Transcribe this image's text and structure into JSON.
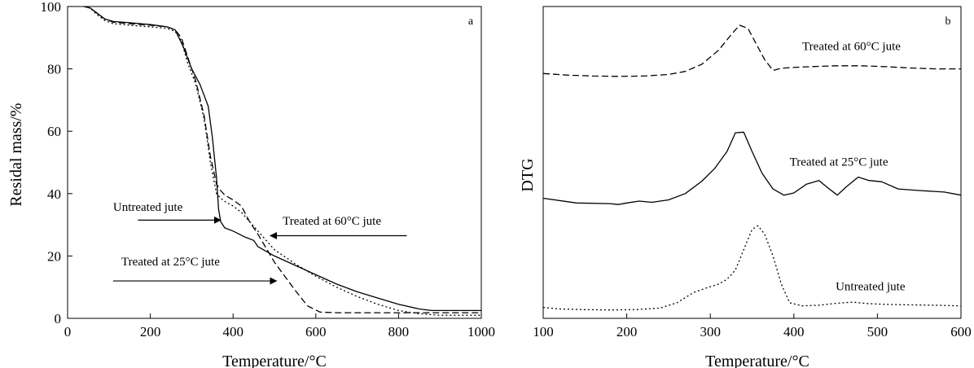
{
  "chart_data": [
    {
      "type": "line",
      "panel_label": "a",
      "xlabel": "Temperature/°C",
      "ylabel": "Residal mass/%",
      "xlim": [
        0,
        1000
      ],
      "ylim": [
        0,
        100
      ],
      "xticks": [
        0,
        200,
        400,
        600,
        800,
        1000
      ],
      "yticks": [
        0,
        20,
        40,
        60,
        80,
        100
      ],
      "grid": false,
      "annotations": [
        {
          "text": "Untreated jute",
          "arrow_from": [
            170,
            31.5
          ],
          "arrow_to": [
            370,
            31.5
          ],
          "text_at": [
            110,
            34.5
          ]
        },
        {
          "text": "Treated at 60°C jute",
          "arrow_from": [
            820,
            26.5
          ],
          "arrow_to": [
            490,
            26.5
          ],
          "text_at": [
            520,
            30
          ]
        },
        {
          "text": "Treated at 25°C jute",
          "arrow_from": [
            110,
            12
          ],
          "arrow_to": [
            505,
            12
          ],
          "text_at": [
            130,
            17
          ]
        }
      ],
      "series": [
        {
          "label": "Untreated jute",
          "style": "solid",
          "x": [
            40,
            55,
            70,
            90,
            110,
            150,
            200,
            240,
            260,
            280,
            300,
            320,
            340,
            350,
            360,
            365,
            370,
            380,
            400,
            430,
            450,
            460,
            500,
            550,
            600,
            650,
            700,
            750,
            800,
            850,
            880,
            900,
            1000
          ],
          "y": [
            100,
            99.5,
            98,
            96,
            95.2,
            94.8,
            94.2,
            93.5,
            92.5,
            87,
            80,
            75,
            68,
            58,
            45,
            35,
            31,
            29,
            28,
            26,
            25,
            23,
            20,
            17,
            14,
            11,
            8.5,
            6.5,
            4.5,
            3,
            2.5,
            2.5,
            2.5
          ]
        },
        {
          "label": "Treated at 25°C jute",
          "style": "dashed",
          "x": [
            40,
            55,
            70,
            90,
            110,
            150,
            200,
            240,
            260,
            275,
            290,
            310,
            330,
            345,
            360,
            370,
            380,
            400,
            420,
            440,
            460,
            500,
            550,
            580,
            610,
            650,
            700,
            800,
            900,
            1000
          ],
          "y": [
            100,
            99.5,
            98,
            96,
            95,
            94.5,
            94,
            93.5,
            92.5,
            90,
            84,
            76,
            65,
            52,
            43,
            41,
            39.5,
            38,
            36,
            31,
            27,
            18,
            9,
            4,
            2,
            1.8,
            1.8,
            1.8,
            1.8,
            1.8
          ]
        },
        {
          "label": "Treated at 60°C jute",
          "style": "dotted",
          "x": [
            40,
            55,
            70,
            90,
            110,
            150,
            200,
            240,
            260,
            275,
            290,
            310,
            330,
            345,
            360,
            370,
            380,
            400,
            420,
            440,
            460,
            500,
            550,
            600,
            650,
            700,
            750,
            800,
            850,
            900,
            950,
            1000
          ],
          "y": [
            100,
            99.5,
            97.5,
            95.5,
            94.5,
            94,
            93.5,
            93,
            92,
            89,
            82,
            75,
            64,
            50,
            40,
            38.5,
            37.5,
            36,
            34,
            31,
            28,
            22,
            17.5,
            13.5,
            10,
            7,
            4.5,
            2.5,
            1.5,
            1,
            1,
            1
          ]
        }
      ]
    },
    {
      "type": "line",
      "panel_label": "b",
      "xlabel": "Temperature/°C",
      "ylabel": "DTG",
      "xlim": [
        100,
        600
      ],
      "xticks": [
        100,
        200,
        300,
        400,
        500,
        600
      ],
      "yticks": [],
      "grid": false,
      "annotations": [
        {
          "text": "Treated at 60°C jute",
          "text_at": [
            410,
            86
          ]
        },
        {
          "text": "Treated at 25°C jute",
          "text_at": [
            395,
            49
          ]
        },
        {
          "text": "Untreated jute",
          "text_at": [
            450,
            9
          ]
        }
      ],
      "series": [
        {
          "label": "Treated at 60°C jute",
          "style": "dashed",
          "x": [
            100,
            130,
            160,
            190,
            220,
            250,
            270,
            290,
            310,
            325,
            335,
            345,
            355,
            365,
            375,
            385,
            395,
            410,
            430,
            450,
            480,
            510,
            540,
            570,
            600
          ],
          "y": [
            78.5,
            78,
            77.7,
            77.6,
            77.7,
            78.2,
            79.2,
            81.5,
            86,
            91,
            94,
            93,
            88,
            83,
            79.5,
            80.2,
            80.4,
            80.6,
            80.8,
            81,
            81,
            80.7,
            80.3,
            80,
            80
          ]
        },
        {
          "label": "Treated at 25°C jute",
          "style": "solid",
          "x": [
            100,
            140,
            180,
            190,
            200,
            215,
            230,
            250,
            270,
            290,
            305,
            320,
            330,
            340,
            350,
            362,
            375,
            388,
            400,
            415,
            430,
            440,
            452,
            462,
            477,
            490,
            505,
            525,
            550,
            580,
            600
          ],
          "y": [
            38.5,
            37,
            36.8,
            36.5,
            37,
            37.6,
            37.2,
            38,
            40,
            44,
            48,
            53.5,
            59.5,
            59.7,
            53.5,
            46.5,
            41.5,
            39.5,
            40.2,
            43,
            44.2,
            42,
            39.5,
            42,
            45.3,
            44.2,
            43.8,
            41.5,
            41,
            40.5,
            39.5
          ]
        },
        {
          "label": "Untreated jute",
          "style": "dotted",
          "x": [
            100,
            120,
            150,
            180,
            210,
            240,
            260,
            280,
            295,
            310,
            320,
            330,
            340,
            350,
            357,
            365,
            375,
            385,
            395,
            410,
            430,
            450,
            470,
            490,
            510,
            540,
            570,
            600
          ],
          "y": [
            3.5,
            3,
            2.8,
            2.7,
            2.8,
            3.3,
            5,
            8.3,
            9.7,
            11,
            12.5,
            15.5,
            22,
            28.5,
            29.7,
            27,
            20,
            11,
            5,
            4,
            4.2,
            4.8,
            5.2,
            4.7,
            4.5,
            4.3,
            4.2,
            4
          ]
        }
      ]
    }
  ]
}
